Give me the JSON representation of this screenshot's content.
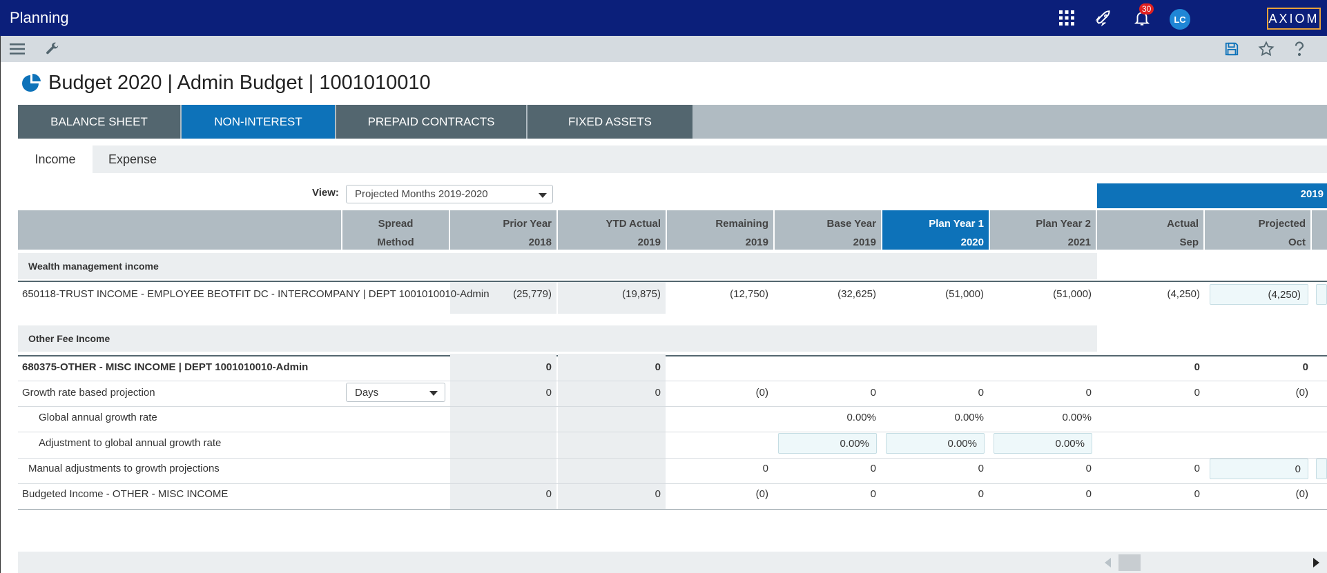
{
  "app": {
    "title": "Planning",
    "notification_count": "30",
    "avatar_initials": "LC",
    "logo_text": "AXIOM"
  },
  "page": {
    "title": "Budget 2020 | Admin Budget | 1001010010"
  },
  "main_tabs": [
    {
      "label": "BALANCE SHEET"
    },
    {
      "label": "NON-INTEREST"
    },
    {
      "label": "PREPAID CONTRACTS"
    },
    {
      "label": "FIXED ASSETS"
    }
  ],
  "sub_tabs": [
    {
      "label": "Income"
    },
    {
      "label": "Expense"
    }
  ],
  "view": {
    "label": "View:",
    "selected": "Projected Months 2019-2020"
  },
  "year_band": "2019",
  "headers": [
    {
      "line1": "Spread",
      "line2": "Method"
    },
    {
      "line1": "Prior Year",
      "line2": "2018"
    },
    {
      "line1": "YTD Actual",
      "line2": "2019"
    },
    {
      "line1": "Remaining",
      "line2": "2019"
    },
    {
      "line1": "Base Year",
      "line2": "2019"
    },
    {
      "line1": "Plan Year 1",
      "line2": "2020"
    },
    {
      "line1": "Plan Year 2",
      "line2": "2021"
    },
    {
      "line1": "Actual",
      "line2": "Sep"
    },
    {
      "line1": "Projected",
      "line2": "Oct"
    }
  ],
  "sections": [
    {
      "title": "Wealth management income"
    },
    {
      "title": "Other Fee Income"
    }
  ],
  "rows": {
    "trust": {
      "label": "650118-TRUST INCOME - EMPLOYEE BEOTFIT DC - INTERCOMPANY | DEPT 1001010010-Admin",
      "prior": "(25,779)",
      "ytd": "(19,875)",
      "remaining": "(12,750)",
      "base": "(32,625)",
      "plan1": "(51,000)",
      "plan2": "(51,000)",
      "actual": "(4,250)",
      "projected": "(4,250)"
    },
    "misc": {
      "label": "680375-OTHER - MISC INCOME | DEPT 1001010010-Admin",
      "prior": "0",
      "ytd": "0",
      "actual": "0",
      "projected": "0"
    },
    "growth": {
      "label": "Growth rate based projection",
      "method": "Days",
      "prior": "0",
      "ytd": "0",
      "remaining": "(0)",
      "base": "0",
      "plan1": "0",
      "plan2": "0",
      "actual": "0",
      "projected": "(0)"
    },
    "global_rate": {
      "label": "Global annual growth rate",
      "base": "0.00%",
      "plan1": "0.00%",
      "plan2": "0.00%"
    },
    "adjust_rate": {
      "label": "Adjustment to global annual growth rate",
      "base": "0.00%",
      "plan1": "0.00%",
      "plan2": "0.00%"
    },
    "manual": {
      "label": "Manual adjustments to growth projections",
      "remaining": "0",
      "base": "0",
      "plan1": "0",
      "plan2": "0",
      "actual": "0",
      "projected": "0"
    },
    "budgeted": {
      "label": "Budgeted Income - OTHER - MISC INCOME",
      "prior": "0",
      "ytd": "0",
      "remaining": "(0)",
      "base": "0",
      "plan1": "0",
      "plan2": "0",
      "actual": "0",
      "projected": "(0)"
    }
  },
  "colors": {
    "topbar": "#0b1f7a",
    "accent": "#0d72b9",
    "tab": "#53666f",
    "header": "#b0bbc2"
  }
}
